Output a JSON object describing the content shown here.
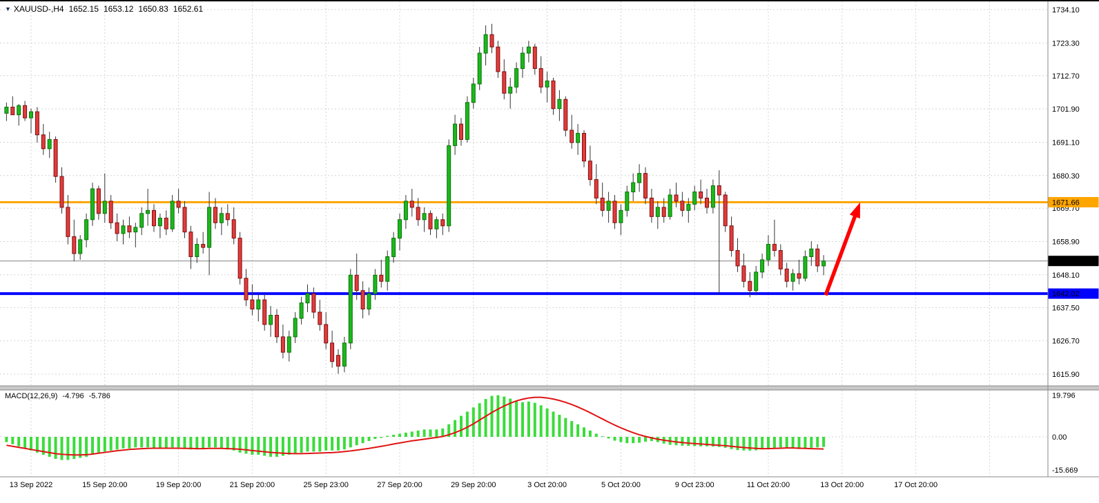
{
  "symbol_bar": {
    "dropdown_icon": "▼",
    "symbol_period": "XAUUSD-,H4",
    "open": "1652.15",
    "high": "1653.12",
    "low": "1650.83",
    "close": "1652.61"
  },
  "chart_data": {
    "type": "candlestick",
    "symbol": "XAUUSD-",
    "timeframe": "H4",
    "price_axis": {
      "ticks": [
        "1734.10",
        "1723.30",
        "1712.70",
        "1701.90",
        "1691.10",
        "1680.30",
        "1669.70",
        "1658.90",
        "1648.10",
        "1637.50",
        "1626.70",
        "1615.90"
      ]
    },
    "time_axis": {
      "labels": [
        "13 Sep 2022",
        "15 Sep 20:00",
        "19 Sep 20:00",
        "21 Sep 20:00",
        "25 Sep 23:00",
        "27 Sep 20:00",
        "29 Sep 20:00",
        "3 Oct 20:00",
        "5 Oct 20:00",
        "9 Oct 23:00",
        "11 Oct 20:00",
        "13 Oct 20:00",
        "17 Oct 20:00"
      ]
    },
    "candles": [
      [
        1700.5,
        1704,
        1698,
        1702.5
      ],
      [
        1702.5,
        1706,
        1700,
        1700
      ],
      [
        1700,
        1703.5,
        1696.5,
        1703
      ],
      [
        1703,
        1704.5,
        1698,
        1699
      ],
      [
        1699,
        1702,
        1694,
        1701
      ],
      [
        1701,
        1702.5,
        1691,
        1693.5
      ],
      [
        1693.5,
        1697,
        1687,
        1689
      ],
      [
        1689,
        1694.5,
        1686,
        1692
      ],
      [
        1692,
        1693,
        1678,
        1680
      ],
      [
        1680,
        1683,
        1668,
        1670
      ],
      [
        1670,
        1674,
        1658,
        1660.5
      ],
      [
        1660.5,
        1666,
        1652.5,
        1655
      ],
      [
        1655,
        1661,
        1653,
        1659.5
      ],
      [
        1659.5,
        1668,
        1657,
        1666
      ],
      [
        1666,
        1678,
        1664,
        1676
      ],
      [
        1676,
        1677,
        1666,
        1668
      ],
      [
        1668,
        1681,
        1665,
        1672
      ],
      [
        1672,
        1674,
        1663,
        1665
      ],
      [
        1665,
        1668,
        1659,
        1661.5
      ],
      [
        1661.5,
        1666,
        1658,
        1664
      ],
      [
        1664,
        1667,
        1660,
        1662
      ],
      [
        1662,
        1665,
        1657,
        1663.5
      ],
      [
        1663.5,
        1670,
        1661,
        1668
      ],
      [
        1668,
        1676,
        1664,
        1669
      ],
      [
        1669,
        1671,
        1662,
        1664
      ],
      [
        1664,
        1668,
        1660,
        1666.5
      ],
      [
        1666.5,
        1669,
        1661,
        1663
      ],
      [
        1663,
        1674,
        1662,
        1672
      ],
      [
        1672,
        1676,
        1668,
        1670
      ],
      [
        1670,
        1672,
        1660,
        1662
      ],
      [
        1662,
        1664,
        1650,
        1654
      ],
      [
        1654,
        1660,
        1652,
        1658
      ],
      [
        1658,
        1662,
        1655,
        1657
      ],
      [
        1657,
        1675,
        1648,
        1670
      ],
      [
        1670,
        1673,
        1663,
        1665
      ],
      [
        1665,
        1670,
        1661,
        1668
      ],
      [
        1668,
        1671,
        1664,
        1666
      ],
      [
        1666,
        1670,
        1658,
        1660
      ],
      [
        1660,
        1662,
        1645,
        1647
      ],
      [
        1647,
        1650,
        1638,
        1640
      ],
      [
        1640,
        1645,
        1635,
        1637
      ],
      [
        1637,
        1642,
        1633,
        1640
      ],
      [
        1640,
        1642,
        1630,
        1632
      ],
      [
        1632,
        1638,
        1628,
        1635
      ],
      [
        1635,
        1637,
        1626,
        1628
      ],
      [
        1628,
        1632,
        1621,
        1623
      ],
      [
        1623,
        1630,
        1620,
        1628
      ],
      [
        1628,
        1636,
        1626,
        1634
      ],
      [
        1634,
        1641,
        1632,
        1639
      ],
      [
        1639,
        1645,
        1636,
        1642
      ],
      [
        1642,
        1644,
        1634,
        1636
      ],
      [
        1636,
        1640,
        1630,
        1632
      ],
      [
        1632,
        1636,
        1624,
        1626
      ],
      [
        1626,
        1630,
        1618,
        1620
      ],
      [
        1622,
        1624,
        1616,
        1618.5
      ],
      [
        1618.5,
        1628,
        1616.5,
        1626
      ],
      [
        1626,
        1650,
        1624,
        1648
      ],
      [
        1648,
        1655,
        1640,
        1643
      ],
      [
        1643,
        1646,
        1634,
        1637
      ],
      [
        1637,
        1644,
        1635,
        1642
      ],
      [
        1642,
        1650,
        1640,
        1648
      ],
      [
        1648,
        1653,
        1644,
        1646
      ],
      [
        1646,
        1656,
        1643,
        1654
      ],
      [
        1654,
        1662,
        1652,
        1660
      ],
      [
        1660,
        1668,
        1656,
        1666
      ],
      [
        1666,
        1674,
        1663,
        1672
      ],
      [
        1672,
        1676,
        1667,
        1670
      ],
      [
        1670,
        1673,
        1664,
        1666
      ],
      [
        1666,
        1670,
        1662,
        1668
      ],
      [
        1668,
        1669,
        1661,
        1663
      ],
      [
        1663,
        1667,
        1660,
        1666
      ],
      [
        1666,
        1668,
        1661,
        1664
      ],
      [
        1664,
        1692,
        1662,
        1690
      ],
      [
        1690,
        1700,
        1687,
        1697
      ],
      [
        1697,
        1699,
        1690,
        1692
      ],
      [
        1692,
        1706,
        1691,
        1704
      ],
      [
        1704,
        1712,
        1702,
        1710
      ],
      [
        1710,
        1722,
        1708,
        1720
      ],
      [
        1720,
        1729,
        1716,
        1726
      ],
      [
        1726,
        1729.5,
        1720,
        1722
      ],
      [
        1722,
        1724,
        1712,
        1714
      ],
      [
        1714,
        1718,
        1705,
        1707
      ],
      [
        1707,
        1712,
        1702,
        1709
      ],
      [
        1709,
        1717,
        1707,
        1715
      ],
      [
        1715,
        1722,
        1712,
        1720
      ],
      [
        1720,
        1724,
        1717,
        1722
      ],
      [
        1722,
        1723,
        1713,
        1715
      ],
      [
        1715,
        1719,
        1707,
        1709
      ],
      [
        1709,
        1714,
        1704,
        1711
      ],
      [
        1711,
        1712,
        1700,
        1702
      ],
      [
        1702,
        1708,
        1698,
        1705
      ],
      [
        1705,
        1706,
        1693,
        1695
      ],
      [
        1695,
        1700,
        1689,
        1691
      ],
      [
        1691,
        1697,
        1687,
        1694
      ],
      [
        1694,
        1695,
        1683,
        1685
      ],
      [
        1685,
        1690,
        1677,
        1679
      ],
      [
        1679,
        1684,
        1671,
        1673
      ],
      [
        1673,
        1678,
        1667,
        1669
      ],
      [
        1669,
        1675,
        1665,
        1672
      ],
      [
        1672,
        1674,
        1663,
        1665
      ],
      [
        1665,
        1671,
        1661,
        1669
      ],
      [
        1669,
        1677,
        1667,
        1675
      ],
      [
        1675,
        1681,
        1672,
        1678
      ],
      [
        1678,
        1684,
        1675,
        1681
      ],
      [
        1681,
        1683,
        1671,
        1673
      ],
      [
        1673,
        1676,
        1665,
        1667
      ],
      [
        1667,
        1672,
        1663,
        1670
      ],
      [
        1670,
        1673,
        1665,
        1667
      ],
      [
        1667,
        1676,
        1666,
        1674
      ],
      [
        1674,
        1678,
        1670,
        1672
      ],
      [
        1672,
        1675,
        1667,
        1669
      ],
      [
        1669,
        1673,
        1665,
        1671
      ],
      [
        1671,
        1677,
        1669,
        1675
      ],
      [
        1675,
        1679,
        1671,
        1673
      ],
      [
        1673,
        1676,
        1668,
        1670
      ],
      [
        1670,
        1679,
        1668,
        1677
      ],
      [
        1677,
        1682,
        1642,
        1674
      ],
      [
        1674,
        1675,
        1662,
        1664
      ],
      [
        1664,
        1667,
        1654,
        1656
      ],
      [
        1656,
        1660,
        1649,
        1651
      ],
      [
        1651,
        1655,
        1644,
        1646
      ],
      [
        1646,
        1649,
        1640.8,
        1643
      ],
      [
        1643,
        1651,
        1641.5,
        1649
      ],
      [
        1649,
        1655,
        1647,
        1653
      ],
      [
        1653,
        1661,
        1651,
        1658
      ],
      [
        1658,
        1666,
        1654,
        1656
      ],
      [
        1656,
        1658,
        1648,
        1650
      ],
      [
        1650,
        1652,
        1644,
        1646
      ],
      [
        1646,
        1650,
        1643,
        1648.5
      ],
      [
        1648.5,
        1653,
        1645,
        1647
      ],
      [
        1647,
        1656,
        1646,
        1654
      ],
      [
        1654,
        1659,
        1651,
        1656.5
      ],
      [
        1656.5,
        1658,
        1649,
        1651
      ],
      [
        1651,
        1654.5,
        1648,
        1652.6
      ]
    ],
    "overlays": {
      "resistance_line": {
        "price": 1671.66,
        "label": "1671.66",
        "color": "#FFA500"
      },
      "support_line": {
        "price": 1642.02,
        "label": "1642.02",
        "color": "#0000FF"
      },
      "current_price": {
        "price": 1652.61,
        "label": "1652.61",
        "color": "#000000"
      },
      "arrow": {
        "color": "#FF0000",
        "from_price": 1641.5,
        "to_price": 1671.6
      }
    },
    "macd": {
      "label": "MACD(12,26,9)",
      "value_main": "-4.796",
      "value_signal": "-5.786",
      "axis_ticks": [
        "19.796",
        "0.00",
        "-15.669"
      ],
      "histogram": [
        -2.5,
        -3.5,
        -4.5,
        -5.5,
        -6.5,
        -7.5,
        -8.5,
        -9.5,
        -10.5,
        -11,
        -11,
        -10.5,
        -10,
        -9.5,
        -8.5,
        -7.5,
        -7,
        -6.5,
        -6,
        -5.5,
        -5.5,
        -5,
        -5,
        -5,
        -5.5,
        -5.5,
        -5.5,
        -5,
        -5,
        -5.5,
        -6,
        -6,
        -5.5,
        -5,
        -5,
        -5.5,
        -6,
        -6.5,
        -7.5,
        -8,
        -8.5,
        -8.5,
        -9,
        -9.5,
        -9.5,
        -9,
        -8.5,
        -8,
        -7.5,
        -7,
        -7,
        -7,
        -6.5,
        -6.5,
        -6.5,
        -6,
        -5,
        -4,
        -3,
        -2,
        -1,
        -0.5,
        0.5,
        1,
        1.5,
        2,
        2.5,
        3,
        3.5,
        3.5,
        3.5,
        4,
        6,
        8,
        10,
        12,
        14,
        16,
        18,
        19.5,
        19.8,
        19.2,
        18.2,
        17.2,
        16.5,
        16.8,
        16.2,
        15,
        13.5,
        12,
        10.5,
        9,
        7.5,
        6,
        4.5,
        3,
        1.5,
        0.3,
        -0.8,
        -1.8,
        -2.5,
        -3,
        -3,
        -2.8,
        -2.3,
        -2,
        -2.5,
        -3.2,
        -3.8,
        -4,
        -4.2,
        -4.3,
        -4.4,
        -4.5,
        -4.5,
        -4.6,
        -4.8,
        -5.2,
        -5.8,
        -6.3,
        -6.5,
        -6.6,
        -6.4,
        -6,
        -5.6,
        -5.2,
        -5,
        -5.2,
        -5.6,
        -5.8,
        -5.5,
        -5.2,
        -5,
        -4.796
      ],
      "signal": [
        -4,
        -4.5,
        -5,
        -5.5,
        -6,
        -6.5,
        -7,
        -7.5,
        -8,
        -8.3,
        -8.5,
        -8.6,
        -8.6,
        -8.5,
        -8.2,
        -7.8,
        -7.4,
        -7,
        -6.6,
        -6.3,
        -6,
        -5.8,
        -5.6,
        -5.5,
        -5.4,
        -5.4,
        -5.4,
        -5.4,
        -5.4,
        -5.5,
        -5.5,
        -5.6,
        -5.6,
        -5.5,
        -5.5,
        -5.5,
        -5.6,
        -5.7,
        -5.9,
        -6.2,
        -6.5,
        -6.8,
        -7.1,
        -7.4,
        -7.6,
        -7.8,
        -7.9,
        -8,
        -8,
        -7.9,
        -7.8,
        -7.7,
        -7.6,
        -7.5,
        -7.3,
        -7,
        -6.7,
        -6.3,
        -5.9,
        -5.5,
        -5,
        -4.5,
        -4,
        -3.4,
        -2.9,
        -2.4,
        -1.9,
        -1.5,
        -1.1,
        -0.7,
        -0.3,
        0.2,
        1,
        2,
        3.2,
        4.6,
        6.2,
        8,
        9.8,
        11.6,
        13.2,
        14.7,
        16,
        17.1,
        17.9,
        18.5,
        18.8,
        18.8,
        18.5,
        18,
        17.3,
        16.4,
        15.4,
        14.2,
        12.9,
        11.5,
        10,
        8.5,
        7,
        5.6,
        4.3,
        3.1,
        2,
        1,
        0.2,
        -0.5,
        -1.1,
        -1.6,
        -2,
        -2.4,
        -2.7,
        -3,
        -3.2,
        -3.4,
        -3.6,
        -3.8,
        -4,
        -4.2,
        -4.5,
        -4.8,
        -5.1,
        -5.3,
        -5.5,
        -5.6,
        -5.6,
        -5.5,
        -5.4,
        -5.3,
        -5.3,
        -5.4,
        -5.5,
        -5.6,
        -5.7,
        -5.786
      ],
      "histogram_color": "#3BDC3B",
      "signal_color": "#E01212"
    },
    "colors": {
      "background": "#FFFFFF",
      "grid": "#D4D4D4",
      "bull": "#1CB81C",
      "bull_border": "#0A730A",
      "bear": "#E23B3B",
      "bear_border": "#7A1010",
      "wick": "#333333",
      "axis_line": "#8A8A8A",
      "separator": "#C8C8C8",
      "current_price_line": "#808080"
    }
  }
}
